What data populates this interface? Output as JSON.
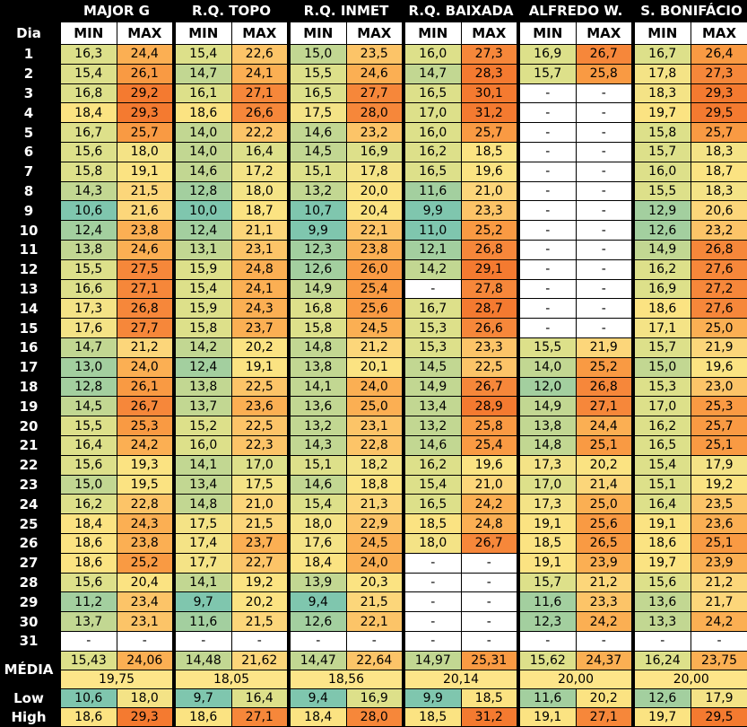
{
  "header": {
    "day_label": "Dia",
    "stations": [
      "MAJOR G",
      "R.Q. TOPO",
      "R.Q. INMET",
      "R.Q. BAIXADA",
      "ALFREDO W.",
      "S. BONIFÁCIO"
    ],
    "min_label": "MIN",
    "max_label": "MAX"
  },
  "rows": [
    {
      "day": "1",
      "v": [
        "16,3",
        "24,4",
        "15,4",
        "22,6",
        "15,0",
        "23,5",
        "16,0",
        "27,3",
        "16,9",
        "26,7",
        "16,7",
        "26,4"
      ]
    },
    {
      "day": "2",
      "v": [
        "15,4",
        "26,1",
        "14,7",
        "24,1",
        "15,5",
        "24,6",
        "14,7",
        "28,3",
        "15,7",
        "25,8",
        "17,8",
        "27,3"
      ]
    },
    {
      "day": "3",
      "v": [
        "16,8",
        "29,2",
        "16,1",
        "27,1",
        "16,5",
        "27,7",
        "16,5",
        "30,1",
        "-",
        "-",
        "18,3",
        "29,3"
      ]
    },
    {
      "day": "4",
      "v": [
        "18,4",
        "29,3",
        "18,6",
        "26,6",
        "17,5",
        "28,0",
        "17,0",
        "31,2",
        "-",
        "-",
        "19,7",
        "29,5"
      ]
    },
    {
      "day": "5",
      "v": [
        "16,7",
        "25,7",
        "14,0",
        "22,2",
        "14,6",
        "23,2",
        "16,0",
        "25,7",
        "-",
        "-",
        "15,8",
        "25,7"
      ]
    },
    {
      "day": "6",
      "v": [
        "15,6",
        "18,0",
        "14,0",
        "16,4",
        "14,5",
        "16,9",
        "16,2",
        "18,5",
        "-",
        "-",
        "15,7",
        "18,3"
      ]
    },
    {
      "day": "7",
      "v": [
        "15,8",
        "19,1",
        "14,6",
        "17,2",
        "15,1",
        "17,8",
        "16,5",
        "19,6",
        "-",
        "-",
        "16,0",
        "18,7"
      ]
    },
    {
      "day": "8",
      "v": [
        "14,3",
        "21,5",
        "12,8",
        "18,0",
        "13,2",
        "20,0",
        "11,6",
        "21,0",
        "-",
        "-",
        "15,5",
        "18,3"
      ]
    },
    {
      "day": "9",
      "v": [
        "10,6",
        "21,6",
        "10,0",
        "18,7",
        "10,7",
        "20,4",
        "9,9",
        "23,3",
        "-",
        "-",
        "12,9",
        "20,6"
      ]
    },
    {
      "day": "10",
      "v": [
        "12,4",
        "23,8",
        "12,4",
        "21,1",
        "9,9",
        "22,1",
        "11,0",
        "25,2",
        "-",
        "-",
        "12,6",
        "23,2"
      ]
    },
    {
      "day": "11",
      "v": [
        "13,8",
        "24,6",
        "13,1",
        "23,1",
        "12,3",
        "23,8",
        "12,1",
        "26,8",
        "-",
        "-",
        "14,9",
        "26,8"
      ]
    },
    {
      "day": "12",
      "v": [
        "15,5",
        "27,5",
        "15,9",
        "24,8",
        "12,6",
        "26,0",
        "14,2",
        "29,1",
        "-",
        "-",
        "16,2",
        "27,6"
      ]
    },
    {
      "day": "13",
      "v": [
        "16,6",
        "27,1",
        "15,4",
        "24,1",
        "14,9",
        "25,4",
        "-",
        "27,8",
        "-",
        "-",
        "16,9",
        "27,2"
      ]
    },
    {
      "day": "14",
      "v": [
        "17,3",
        "26,8",
        "15,9",
        "24,3",
        "16,8",
        "25,6",
        "16,7",
        "28,7",
        "-",
        "-",
        "18,6",
        "27,6"
      ]
    },
    {
      "day": "15",
      "v": [
        "17,6",
        "27,7",
        "15,8",
        "23,7",
        "15,8",
        "24,5",
        "15,3",
        "26,6",
        "-",
        "-",
        "17,1",
        "25,0"
      ]
    },
    {
      "day": "16",
      "v": [
        "14,7",
        "21,2",
        "14,2",
        "20,2",
        "14,8",
        "21,2",
        "15,3",
        "23,3",
        "15,5",
        "21,9",
        "15,7",
        "21,9"
      ]
    },
    {
      "day": "17",
      "v": [
        "13,0",
        "24,0",
        "12,4",
        "19,1",
        "13,8",
        "20,1",
        "14,5",
        "22,5",
        "14,0",
        "25,2",
        "15,0",
        "19,6"
      ]
    },
    {
      "day": "18",
      "v": [
        "12,8",
        "26,1",
        "13,8",
        "22,5",
        "14,1",
        "24,0",
        "14,9",
        "26,7",
        "12,0",
        "26,8",
        "15,3",
        "23,0"
      ]
    },
    {
      "day": "19",
      "v": [
        "14,5",
        "26,7",
        "13,7",
        "23,6",
        "13,6",
        "25,0",
        "13,4",
        "28,9",
        "14,9",
        "27,1",
        "17,0",
        "25,3"
      ]
    },
    {
      "day": "20",
      "v": [
        "15,5",
        "25,3",
        "15,2",
        "22,5",
        "13,2",
        "23,1",
        "13,2",
        "25,8",
        "13,8",
        "24,4",
        "16,2",
        "25,7"
      ]
    },
    {
      "day": "21",
      "v": [
        "16,4",
        "24,2",
        "16,0",
        "22,3",
        "14,3",
        "22,8",
        "14,6",
        "25,4",
        "14,8",
        "25,1",
        "16,5",
        "25,1"
      ]
    },
    {
      "day": "22",
      "v": [
        "15,6",
        "19,3",
        "14,1",
        "17,0",
        "15,1",
        "18,2",
        "16,2",
        "19,6",
        "17,3",
        "20,2",
        "15,4",
        "17,9"
      ]
    },
    {
      "day": "23",
      "v": [
        "15,0",
        "19,5",
        "13,4",
        "17,5",
        "14,6",
        "18,8",
        "15,4",
        "21,0",
        "17,0",
        "21,4",
        "15,1",
        "19,2"
      ]
    },
    {
      "day": "24",
      "v": [
        "16,2",
        "22,8",
        "14,8",
        "21,0",
        "15,4",
        "21,3",
        "16,5",
        "24,2",
        "17,3",
        "25,0",
        "16,4",
        "23,5"
      ]
    },
    {
      "day": "25",
      "v": [
        "18,4",
        "24,3",
        "17,5",
        "21,5",
        "18,0",
        "22,9",
        "18,5",
        "24,8",
        "19,1",
        "25,6",
        "19,1",
        "23,6"
      ]
    },
    {
      "day": "26",
      "v": [
        "18,6",
        "23,8",
        "17,4",
        "23,7",
        "17,6",
        "24,5",
        "18,0",
        "26,7",
        "18,5",
        "26,5",
        "18,6",
        "25,1"
      ]
    },
    {
      "day": "27",
      "v": [
        "18,6",
        "25,2",
        "17,7",
        "22,7",
        "18,4",
        "24,0",
        "-",
        "-",
        "19,1",
        "23,9",
        "19,7",
        "23,9"
      ]
    },
    {
      "day": "28",
      "v": [
        "15,6",
        "20,4",
        "14,1",
        "19,2",
        "13,9",
        "20,3",
        "-",
        "-",
        "15,7",
        "21,2",
        "15,6",
        "21,2"
      ]
    },
    {
      "day": "29",
      "v": [
        "11,2",
        "23,4",
        "9,7",
        "20,2",
        "9,4",
        "21,5",
        "-",
        "-",
        "11,6",
        "23,3",
        "13,6",
        "21,7"
      ]
    },
    {
      "day": "30",
      "v": [
        "13,7",
        "23,1",
        "11,6",
        "21,5",
        "12,6",
        "22,1",
        "-",
        "-",
        "12,3",
        "24,2",
        "13,3",
        "24,2"
      ]
    },
    {
      "day": "31",
      "v": [
        "-",
        "-",
        "-",
        "-",
        "-",
        "-",
        "-",
        "-",
        "-",
        "-",
        "-",
        "-"
      ]
    }
  ],
  "media": {
    "label": "MÉDIA",
    "values": [
      "15,43",
      "24,06",
      "14,48",
      "21,62",
      "14,47",
      "22,64",
      "14,97",
      "25,31",
      "15,62",
      "24,37",
      "16,24",
      "23,75"
    ],
    "averages": [
      "19,75",
      "18,05",
      "18,56",
      "20,14",
      "20,00",
      "20,00"
    ]
  },
  "low": {
    "label": "Low",
    "values": [
      "10,6",
      "18,0",
      "9,7",
      "16,4",
      "9,4",
      "16,9",
      "9,9",
      "18,5",
      "11,6",
      "20,2",
      "12,6",
      "17,9"
    ]
  },
  "high": {
    "label": "High",
    "values": [
      "18,6",
      "29,3",
      "18,6",
      "27,1",
      "18,4",
      "28,0",
      "18,5",
      "31,2",
      "19,1",
      "27,1",
      "19,7",
      "29,5"
    ]
  },
  "color_scale": {
    "steps": [
      {
        "max": 11.0,
        "color": "#7FC6AE"
      },
      {
        "max": 13.0,
        "color": "#A3CF9F"
      },
      {
        "max": 15.0,
        "color": "#C2D792"
      },
      {
        "max": 17.0,
        "color": "#DDE08A"
      },
      {
        "max": 18.3,
        "color": "#F4E386"
      },
      {
        "max": 20.5,
        "color": "#FBE382"
      },
      {
        "max": 22.0,
        "color": "#FCD67A"
      },
      {
        "max": 23.5,
        "color": "#FCC468"
      },
      {
        "max": 25.0,
        "color": "#FBAF53"
      },
      {
        "max": 26.5,
        "color": "#F99A43"
      },
      {
        "max": 28.0,
        "color": "#F6873A"
      },
      {
        "max": 99.0,
        "color": "#F47A30"
      }
    ],
    "empty_color": "#FFFFFF"
  }
}
